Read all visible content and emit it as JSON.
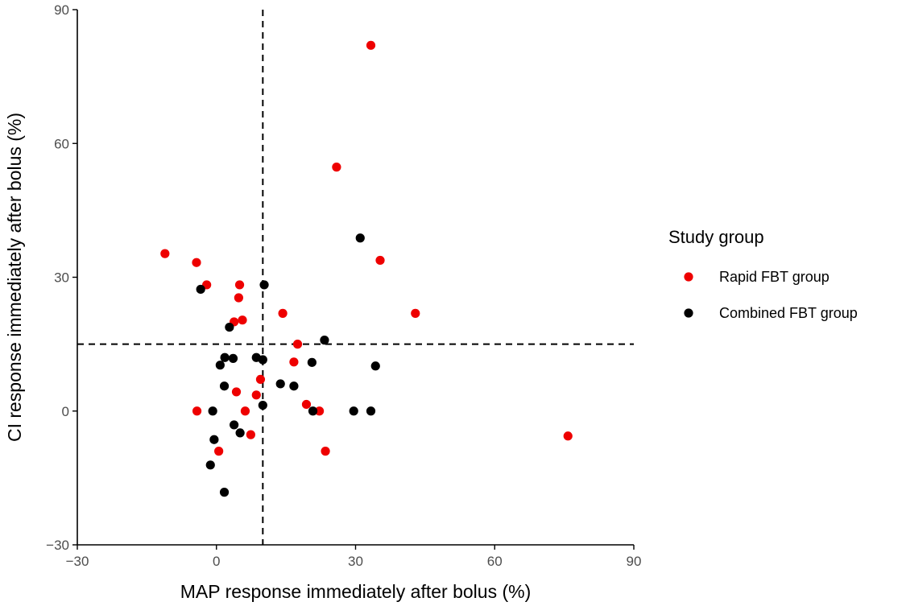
{
  "chart_data": {
    "type": "scatter",
    "xlabel": "MAP response immediately after bolus (%)",
    "ylabel": "CI response immediately after bolus (%)",
    "xlim": [
      -30,
      90
    ],
    "ylim": [
      -30,
      90
    ],
    "x_ticks": [
      -30,
      0,
      30,
      60,
      90
    ],
    "y_ticks": [
      -30,
      0,
      30,
      60,
      90
    ],
    "x_tick_labels": [
      "−30",
      "0",
      "30",
      "60",
      "90"
    ],
    "y_tick_labels": [
      "−30",
      "0",
      "30",
      "60",
      "90"
    ],
    "grid": false,
    "reference_lines": {
      "vertical_x": 10,
      "horizontal_y": 15,
      "style": "dashed"
    },
    "legend": {
      "title": "Study group",
      "position": "right",
      "entries": [
        "Rapid FBT group",
        "Combined FBT group"
      ]
    },
    "series": [
      {
        "name": "Rapid FBT group",
        "color": "#ee0000",
        "points": [
          [
            33.3,
            82
          ],
          [
            25.9,
            54.7
          ],
          [
            35.3,
            33.8
          ],
          [
            42.9,
            21.9
          ],
          [
            -11.1,
            35.3
          ],
          [
            -4.3,
            33.3
          ],
          [
            -2.1,
            28.3
          ],
          [
            5,
            28.3
          ],
          [
            4.8,
            25.4
          ],
          [
            5.6,
            20.4
          ],
          [
            3.8,
            20.0
          ],
          [
            14.3,
            21.9
          ],
          [
            17.5,
            15.0
          ],
          [
            16.7,
            11.0
          ],
          [
            9.5,
            7.1
          ],
          [
            4.3,
            4.3
          ],
          [
            8.6,
            3.6
          ],
          [
            19.4,
            1.5
          ],
          [
            -4.2,
            0
          ],
          [
            6.2,
            0
          ],
          [
            22.2,
            0
          ],
          [
            7.4,
            -5.3
          ],
          [
            0.5,
            -9.0
          ],
          [
            23.5,
            -9.0
          ],
          [
            75.8,
            -5.6
          ]
        ]
      },
      {
        "name": "Combined FBT group",
        "color": "#000000",
        "points": [
          [
            31.0,
            38.8
          ],
          [
            10.3,
            28.3
          ],
          [
            -3.4,
            27.3
          ],
          [
            2.8,
            18.8
          ],
          [
            23.3,
            15.9
          ],
          [
            1.8,
            12.0
          ],
          [
            3.6,
            11.8
          ],
          [
            8.6,
            12.0
          ],
          [
            10.0,
            11.5
          ],
          [
            0.8,
            10.3
          ],
          [
            20.6,
            10.9
          ],
          [
            34.3,
            10.1
          ],
          [
            13.8,
            6.1
          ],
          [
            16.7,
            5.6
          ],
          [
            1.7,
            5.6
          ],
          [
            10.0,
            1.3
          ],
          [
            -0.8,
            0
          ],
          [
            20.8,
            0
          ],
          [
            29.6,
            0
          ],
          [
            33.3,
            0
          ],
          [
            3.8,
            -3.1
          ],
          [
            5.1,
            -4.9
          ],
          [
            -0.5,
            -6.4
          ],
          [
            -1.3,
            -12.1
          ],
          [
            1.7,
            -18.2
          ]
        ]
      }
    ]
  }
}
